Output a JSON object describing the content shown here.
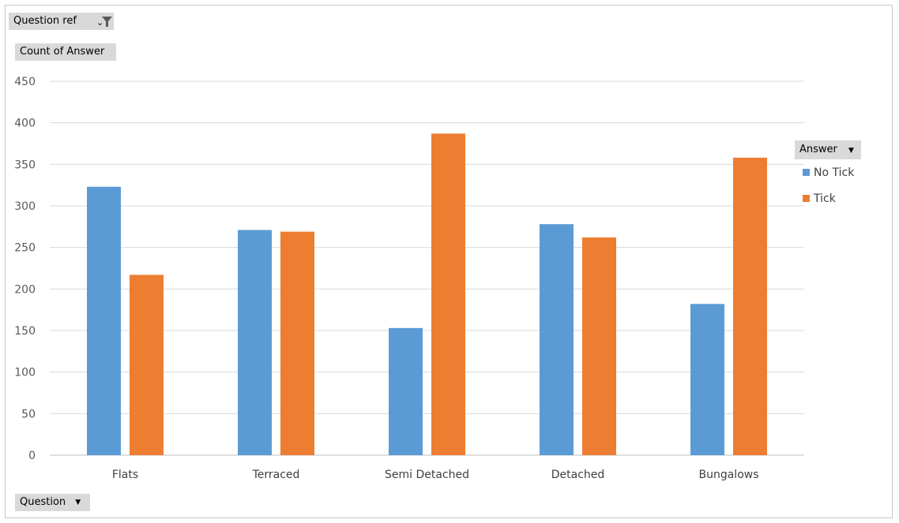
{
  "filters": {
    "report_filter_label": "Question ref",
    "value_field_label": "Count of Answer",
    "axis_field_label": "Question",
    "legend_field_label": "Answer"
  },
  "chart_data": {
    "type": "bar",
    "categories": [
      "Flats",
      "Terraced",
      "Semi Detached",
      "Detached",
      "Bungalows"
    ],
    "series": [
      {
        "name": "No Tick",
        "color": "#5b9bd5",
        "values": [
          323,
          271,
          153,
          278,
          182
        ]
      },
      {
        "name": "Tick",
        "color": "#ed7d31",
        "values": [
          217,
          269,
          387,
          262,
          358
        ]
      }
    ],
    "ylim": [
      0,
      450
    ],
    "yticks": [
      0,
      50,
      100,
      150,
      200,
      250,
      300,
      350,
      400,
      450
    ],
    "grid": true,
    "legend_position": "right"
  }
}
